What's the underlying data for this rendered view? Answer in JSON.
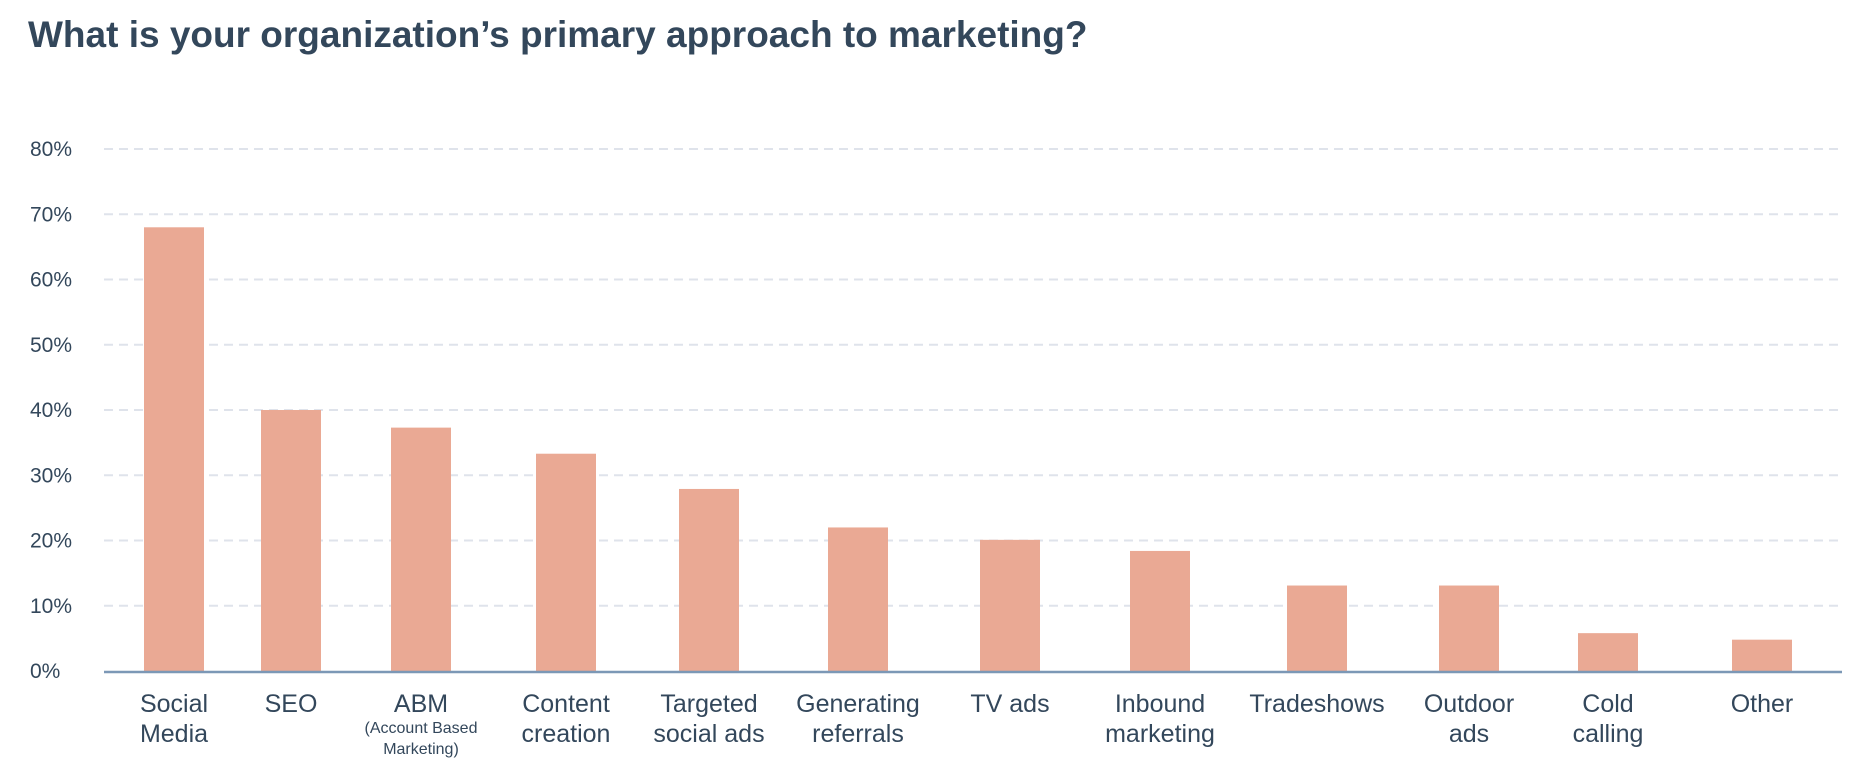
{
  "chart_data": {
    "type": "bar",
    "title": "What is your organization’s primary approach to marketing?",
    "xlabel": "",
    "ylabel": "",
    "ylim": [
      0,
      80
    ],
    "yticks": [
      {
        "value": 0,
        "label": "0%"
      },
      {
        "value": 10,
        "label": "10%"
      },
      {
        "value": 20,
        "label": "20%"
      },
      {
        "value": 30,
        "label": "30%"
      },
      {
        "value": 40,
        "label": "40%"
      },
      {
        "value": 50,
        "label": "50%"
      },
      {
        "value": 60,
        "label": "60%"
      },
      {
        "value": 70,
        "label": "70%"
      },
      {
        "value": 80,
        "label": "80%"
      }
    ],
    "grid": true,
    "bar_color": "#eaa994",
    "categories": [
      {
        "lines": [
          "Social",
          "Media"
        ],
        "sub": []
      },
      {
        "lines": [
          "SEO"
        ],
        "sub": []
      },
      {
        "lines": [
          "ABM"
        ],
        "sub": [
          "(Account Based",
          "Marketing)"
        ]
      },
      {
        "lines": [
          "Content",
          "creation"
        ],
        "sub": []
      },
      {
        "lines": [
          "Targeted",
          "social ads"
        ],
        "sub": []
      },
      {
        "lines": [
          "Generating",
          "referrals"
        ],
        "sub": []
      },
      {
        "lines": [
          "TV ads"
        ],
        "sub": []
      },
      {
        "lines": [
          "Inbound",
          "marketing"
        ],
        "sub": []
      },
      {
        "lines": [
          "Tradeshows"
        ],
        "sub": []
      },
      {
        "lines": [
          "Outdoor",
          "ads"
        ],
        "sub": []
      },
      {
        "lines": [
          "Cold",
          "calling"
        ],
        "sub": []
      },
      {
        "lines": [
          "Other"
        ],
        "sub": []
      }
    ],
    "values": [
      68,
      40,
      37.3,
      33.3,
      27.9,
      22,
      20.1,
      18.4,
      13.1,
      13.1,
      5.8,
      4.8
    ]
  }
}
